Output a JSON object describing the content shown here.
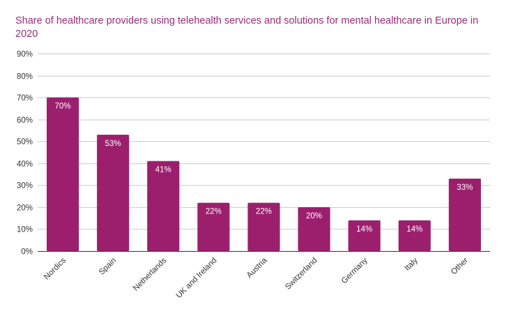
{
  "chart_data": {
    "type": "bar",
    "title": "Share of healthcare providers using telehealth services and solutions for mental healthcare in Europe in 2020",
    "categories": [
      "Nordics",
      "Spain",
      "Netherlands",
      "UK and Ireland",
      "Austria",
      "Switzerland",
      "Germany",
      "Italy",
      "Other"
    ],
    "values": [
      70,
      53,
      41,
      22,
      22,
      20,
      14,
      14,
      33
    ],
    "value_labels": [
      "70%",
      "53%",
      "41%",
      "22%",
      "22%",
      "20%",
      "14%",
      "14%",
      "33%"
    ],
    "ylim": [
      0,
      90
    ],
    "yticks": [
      0,
      10,
      20,
      30,
      40,
      50,
      60,
      70,
      80,
      90
    ],
    "ytick_labels": [
      "0%",
      "10%",
      "20%",
      "30%",
      "40%",
      "50%",
      "60%",
      "70%",
      "80%",
      "90%"
    ],
    "xlabel": "",
    "ylabel": "",
    "grid": true,
    "bar_color": "#9c1f6e",
    "title_color": "#9b2a7a"
  }
}
